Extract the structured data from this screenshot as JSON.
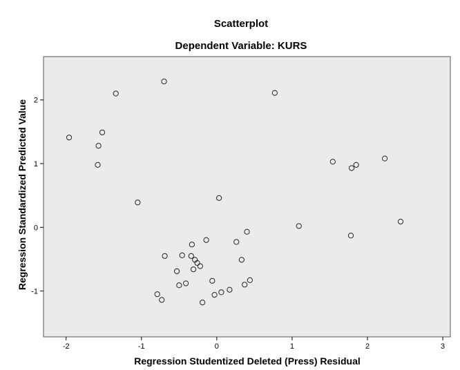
{
  "chart_data": {
    "type": "scatter",
    "title": "Scatterplot",
    "subtitle": "Dependent Variable: KURS",
    "xlabel": "Regression Studentized Deleted (Press) Residual",
    "ylabel": "Regression Standardized Predicted Value",
    "xlim": [
      -2.3,
      3.1
    ],
    "ylim": [
      -1.72,
      2.68
    ],
    "xticks": [
      -2,
      -1,
      0,
      1,
      2,
      3
    ],
    "yticks": [
      -1,
      0,
      1,
      2
    ],
    "xtick_labels": [
      "-2",
      "-1",
      "0",
      "1",
      "2",
      "3"
    ],
    "ytick_labels": [
      "-1",
      "0",
      "1",
      "2"
    ],
    "grid": false,
    "legend": false,
    "colors": {
      "plot_background": "#ebebeb",
      "frame_border": "#bdbdbd",
      "marker_stroke": "#222222"
    },
    "points": [
      {
        "x": 2.44,
        "y": 0.09
      },
      {
        "x": 2.23,
        "y": 1.08
      },
      {
        "x": 1.85,
        "y": 0.98
      },
      {
        "x": 1.79,
        "y": 0.93
      },
      {
        "x": 1.78,
        "y": -0.13
      },
      {
        "x": 1.54,
        "y": 1.03
      },
      {
        "x": 1.09,
        "y": 0.02
      },
      {
        "x": 0.77,
        "y": 2.11
      },
      {
        "x": 0.44,
        "y": -0.83
      },
      {
        "x": 0.4,
        "y": -0.07
      },
      {
        "x": 0.37,
        "y": -0.9
      },
      {
        "x": 0.33,
        "y": -0.51
      },
      {
        "x": 0.26,
        "y": -0.23
      },
      {
        "x": 0.17,
        "y": -0.98
      },
      {
        "x": 0.06,
        "y": -1.02
      },
      {
        "x": 0.03,
        "y": 0.46
      },
      {
        "x": -0.03,
        "y": -1.06
      },
      {
        "x": -0.06,
        "y": -0.84
      },
      {
        "x": -0.14,
        "y": -0.2
      },
      {
        "x": -0.19,
        "y": -1.18
      },
      {
        "x": -0.22,
        "y": -0.61
      },
      {
        "x": -0.26,
        "y": -0.56
      },
      {
        "x": -0.29,
        "y": -0.51
      },
      {
        "x": -0.31,
        "y": -0.66
      },
      {
        "x": -0.33,
        "y": -0.27
      },
      {
        "x": -0.34,
        "y": -0.45
      },
      {
        "x": -0.41,
        "y": -0.88
      },
      {
        "x": -0.46,
        "y": -0.44
      },
      {
        "x": -0.5,
        "y": -0.91
      },
      {
        "x": -0.53,
        "y": -0.69
      },
      {
        "x": -0.69,
        "y": -0.45
      },
      {
        "x": -0.7,
        "y": 2.29
      },
      {
        "x": -0.73,
        "y": -1.14
      },
      {
        "x": -0.79,
        "y": -1.05
      },
      {
        "x": -1.05,
        "y": 0.39
      },
      {
        "x": -1.34,
        "y": 2.1
      },
      {
        "x": -1.52,
        "y": 1.49
      },
      {
        "x": -1.57,
        "y": 1.28
      },
      {
        "x": -1.58,
        "y": 0.98
      },
      {
        "x": -1.96,
        "y": 1.41
      }
    ]
  }
}
